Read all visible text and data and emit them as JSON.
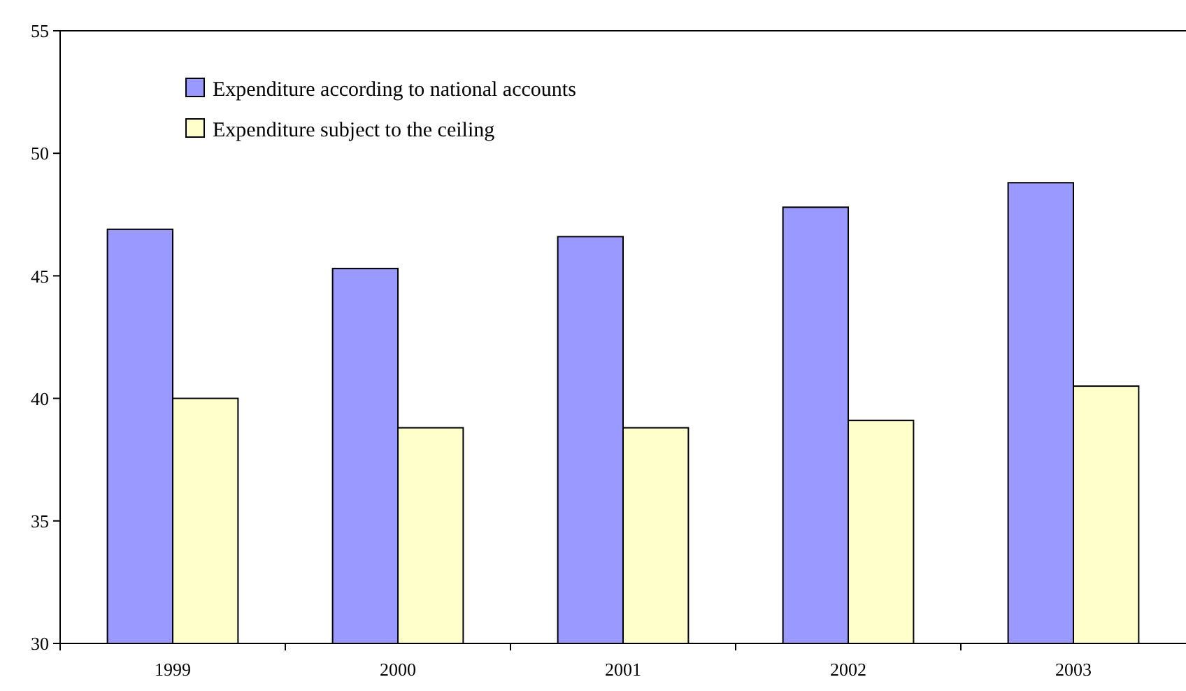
{
  "chart_data": {
    "type": "bar",
    "categories": [
      "1999",
      "2000",
      "2001",
      "2002",
      "2003"
    ],
    "series": [
      {
        "name": "Expenditure according to national accounts",
        "color": "#9999ff",
        "values": [
          46.9,
          45.3,
          46.6,
          47.8,
          48.8
        ]
      },
      {
        "name": "Expenditure subject to the ceiling",
        "color": "#ffffcc",
        "values": [
          40.0,
          38.8,
          38.8,
          39.1,
          40.5
        ]
      }
    ],
    "ylim": [
      30,
      55
    ],
    "yticks": [
      30,
      35,
      40,
      45,
      50,
      55
    ],
    "legend": "top left",
    "grid": false
  }
}
